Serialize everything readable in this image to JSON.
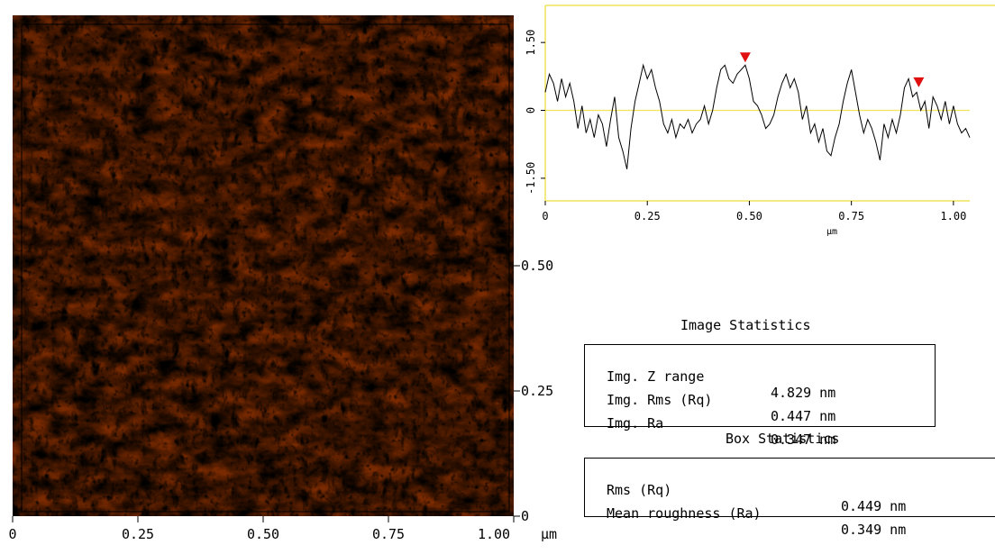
{
  "image_panel": {
    "x_axis_ticks": [
      "0",
      "0.25",
      "0.50",
      "0.75",
      "1.00"
    ],
    "x_axis_unit": "µm",
    "y_axis_ticks": [
      "0",
      "0.25",
      "0.50"
    ],
    "colors": {
      "dark": "#7a2a00",
      "mid": "#b06a0c",
      "bright": "#d2c01c",
      "highlight": "#f0d6a8"
    }
  },
  "chart_data": {
    "type": "line",
    "xlabel": "µm",
    "xlim": [
      0,
      1.04
    ],
    "ylim": [
      -2.0,
      2.2
    ],
    "x_ticks": [
      "0",
      "0.25",
      "0.50",
      "0.75",
      "1.00"
    ],
    "y_ticks": [
      "1.50",
      "0",
      "-1.50"
    ],
    "series": [
      {
        "x": [
          0.0,
          0.01,
          0.02,
          0.03,
          0.04,
          0.05,
          0.06,
          0.07,
          0.08,
          0.09,
          0.1,
          0.11,
          0.12,
          0.13,
          0.14,
          0.15,
          0.16,
          0.17,
          0.18,
          0.19,
          0.2,
          0.21,
          0.22,
          0.23,
          0.24,
          0.25,
          0.26,
          0.27,
          0.28,
          0.29,
          0.3,
          0.31,
          0.32,
          0.33,
          0.34,
          0.35,
          0.36,
          0.37,
          0.38,
          0.39,
          0.4,
          0.41,
          0.42,
          0.43,
          0.44,
          0.45,
          0.46,
          0.47,
          0.48,
          0.49,
          0.5,
          0.51,
          0.52,
          0.53,
          0.54,
          0.55,
          0.56,
          0.57,
          0.58,
          0.59,
          0.6,
          0.61,
          0.62,
          0.63,
          0.64,
          0.65,
          0.66,
          0.67,
          0.68,
          0.69,
          0.7,
          0.71,
          0.72,
          0.73,
          0.74,
          0.75,
          0.76,
          0.77,
          0.78,
          0.79,
          0.8,
          0.81,
          0.82,
          0.83,
          0.84,
          0.85,
          0.86,
          0.87,
          0.88,
          0.89,
          0.9,
          0.91,
          0.92,
          0.93,
          0.94,
          0.95,
          0.96,
          0.97,
          0.98,
          0.99,
          1.0,
          1.01,
          1.02,
          1.03,
          1.04
        ],
        "y": [
          0.4,
          0.8,
          0.6,
          0.2,
          0.7,
          0.3,
          0.6,
          0.2,
          -0.4,
          0.1,
          -0.5,
          -0.2,
          -0.6,
          -0.1,
          -0.3,
          -0.8,
          -0.2,
          0.3,
          -0.6,
          -0.9,
          -1.3,
          -0.4,
          0.2,
          0.6,
          1.0,
          0.7,
          0.9,
          0.5,
          0.2,
          -0.3,
          -0.5,
          -0.2,
          -0.6,
          -0.3,
          -0.4,
          -0.2,
          -0.5,
          -0.3,
          -0.2,
          0.1,
          -0.3,
          0.0,
          0.5,
          0.9,
          1.0,
          0.7,
          0.6,
          0.8,
          0.9,
          1.0,
          0.7,
          0.2,
          0.1,
          -0.1,
          -0.4,
          -0.3,
          -0.1,
          0.3,
          0.6,
          0.8,
          0.5,
          0.7,
          0.4,
          -0.2,
          0.1,
          -0.5,
          -0.3,
          -0.7,
          -0.4,
          -0.9,
          -1.0,
          -0.6,
          -0.3,
          0.2,
          0.6,
          0.9,
          0.4,
          -0.1,
          -0.5,
          -0.2,
          -0.4,
          -0.7,
          -1.1,
          -0.3,
          -0.6,
          -0.2,
          -0.5,
          -0.1,
          0.5,
          0.7,
          0.3,
          0.4,
          0.0,
          0.2,
          -0.4,
          0.3,
          0.1,
          -0.2,
          0.2,
          -0.3,
          0.1,
          -0.3,
          -0.5,
          -0.4,
          -0.6
        ]
      }
    ],
    "markers": [
      {
        "x": 0.49,
        "y": 1.0
      },
      {
        "x": 0.915,
        "y": 0.45
      }
    ],
    "colors": {
      "line": "#000000",
      "zero_line": "#f0e45a",
      "marker": "#e01010",
      "frame": "#f0e45a"
    }
  },
  "image_statistics": {
    "title": "Image Statistics",
    "rows": [
      {
        "label": "Img. Z range",
        "value": "4.829 nm"
      },
      {
        "label": "Img. Rms (Rq)",
        "value": "0.447 nm"
      },
      {
        "label": "Img. Ra",
        "value": "0.347 nm"
      }
    ]
  },
  "box_statistics": {
    "title": "Box Statistics",
    "rows": [
      {
        "label": "Rms (Rq)",
        "value": "0.449 nm"
      },
      {
        "label": "Mean roughness (Ra)",
        "value": "0.349 nm"
      }
    ]
  }
}
